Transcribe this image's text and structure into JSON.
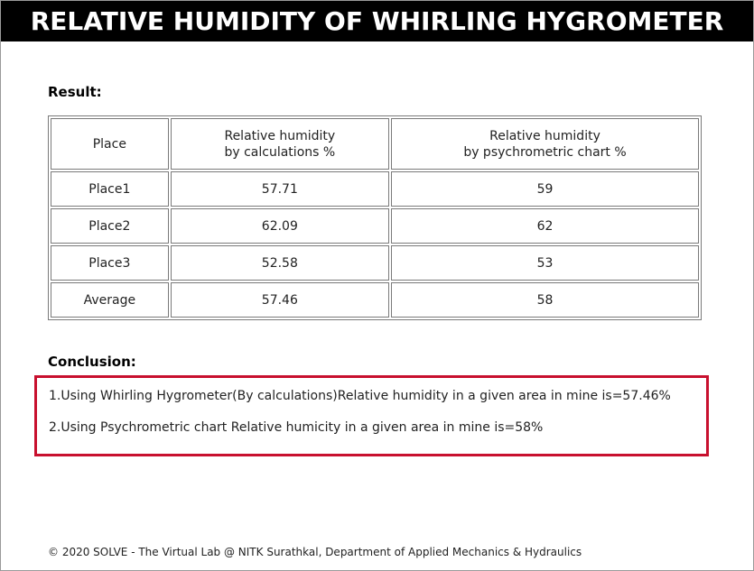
{
  "title": "RELATIVE HUMIDITY OF WHIRLING HYGROMETER",
  "result": {
    "heading": "Result:",
    "headers": {
      "place": "Place",
      "calc_line1": "Relative humidity",
      "calc_line2": "by calculations %",
      "chart_line1": "Relative humidity",
      "chart_line2": "by psychrometric chart %"
    },
    "rows": [
      {
        "place": "Place1",
        "calc": "57.71",
        "chart": "59"
      },
      {
        "place": "Place2",
        "calc": "62.09",
        "chart": "62"
      },
      {
        "place": "Place3",
        "calc": "52.58",
        "chart": "53"
      },
      {
        "place": "Average",
        "calc": "57.46",
        "chart": "58"
      }
    ]
  },
  "conclusion": {
    "heading": "Conclusion:",
    "line1": "1.Using Whirling Hygrometer(By calculations)Relative humidity in a given area in mine is=57.46%",
    "line2": "2.Using Psychrometric chart Relative humicity in a given area in mine is=58%",
    "box_color": "#c8102e"
  },
  "footer": "© 2020 SOLVE - The Virtual Lab @ NITK Surathkal, Department of Applied Mechanics & Hydraulics"
}
